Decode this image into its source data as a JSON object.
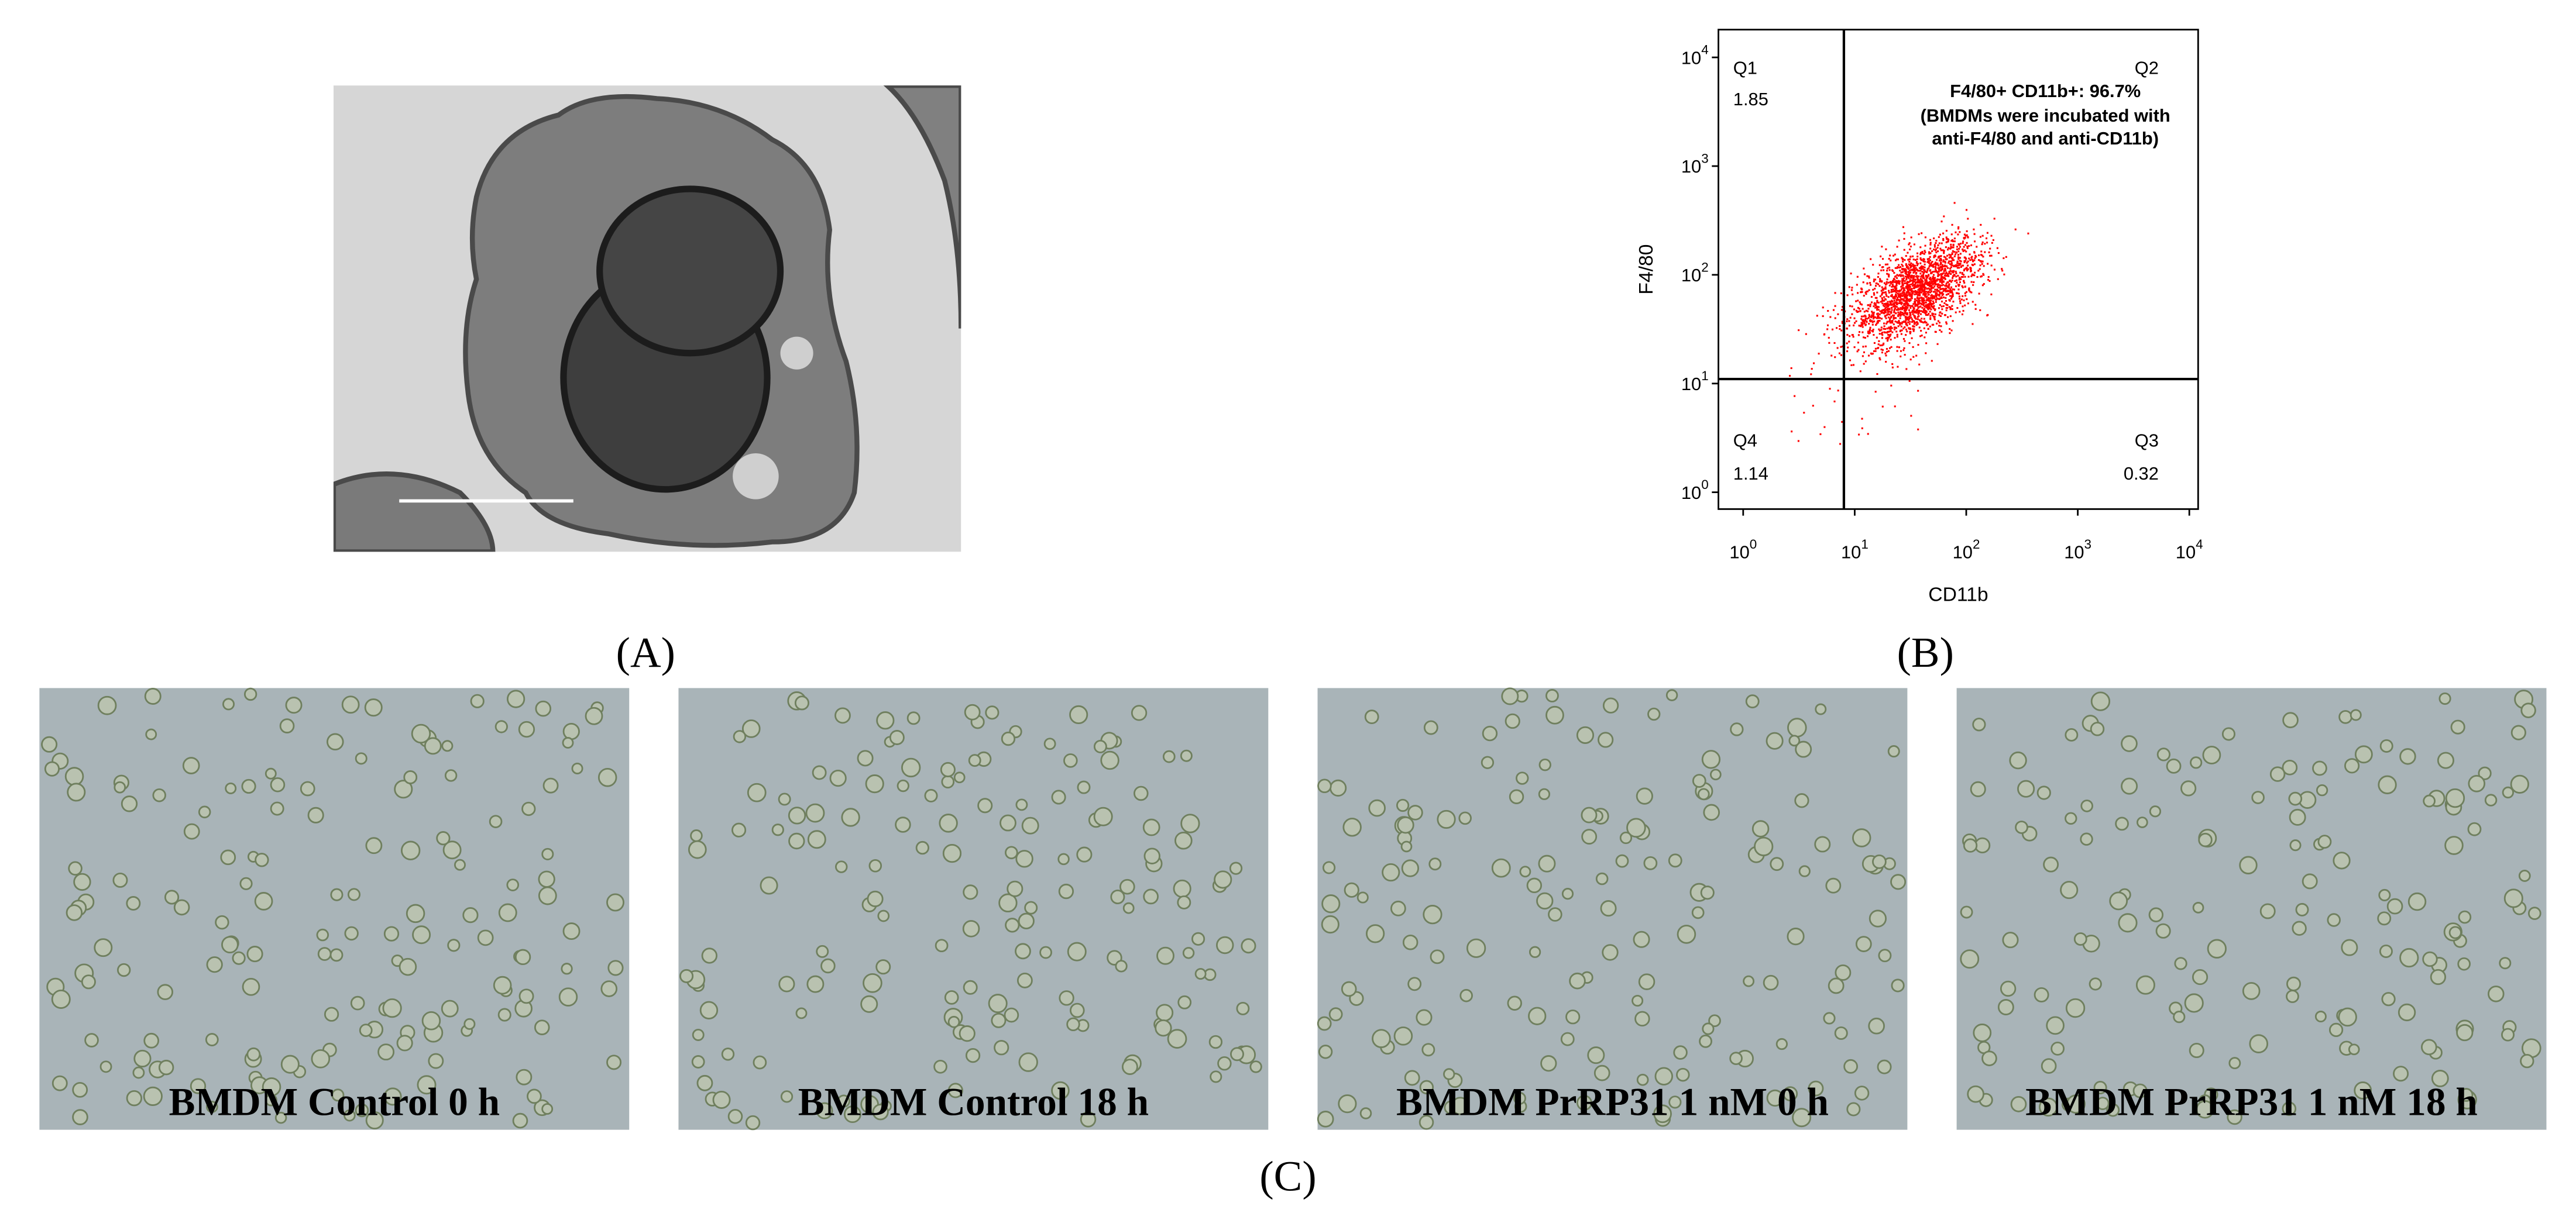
{
  "chart_data": {
    "type": "scatter",
    "xlabel": "CD11b",
    "ylabel": "F4/80",
    "log_scale": true,
    "color": "#ff0000",
    "xlim": [
      0.6,
      12000
    ],
    "ylim": [
      0.7,
      18000
    ],
    "xticks": [
      {
        "value": 1,
        "label": "10",
        "exponent": "0"
      },
      {
        "value": 10,
        "label": "10",
        "exponent": "1"
      },
      {
        "value": 100,
        "label": "10",
        "exponent": "2"
      },
      {
        "value": 1000,
        "label": "10",
        "exponent": "3"
      },
      {
        "value": 10000,
        "label": "10",
        "exponent": "4"
      }
    ],
    "yticks": [
      {
        "value": 1,
        "label": "10",
        "exponent": "0"
      },
      {
        "value": 10,
        "label": "10",
        "exponent": "1"
      },
      {
        "value": 100,
        "label": "10",
        "exponent": "2"
      },
      {
        "value": 1000,
        "label": "10",
        "exponent": "3"
      },
      {
        "value": 10000,
        "label": "10",
        "exponent": "4"
      }
    ],
    "gates": {
      "x": 8,
      "y": 11
    },
    "quadrants": [
      {
        "name": "Q1",
        "value": 1.85
      },
      {
        "name": "Q2",
        "text": "F4/80+ CD11b+: 96.7%",
        "note": [
          "(BMDMs were incubated with",
          "anti-F4/80 and anti-CD11b)"
        ]
      },
      {
        "name": "Q3",
        "value": 0.32
      },
      {
        "name": "Q4",
        "value": 1.14
      }
    ]
  },
  "panels": {
    "a": {
      "label": "(A)"
    },
    "b": {
      "label": "(B)"
    },
    "c": {
      "label": "(C)",
      "images": [
        {
          "caption": "BMDM Control 0 h"
        },
        {
          "caption": "BMDM Control 18 h"
        },
        {
          "caption": "BMDM PrRP31 1 nM 0 h"
        },
        {
          "caption": "BMDM PrRP31 1 nM 18 h"
        }
      ]
    }
  }
}
